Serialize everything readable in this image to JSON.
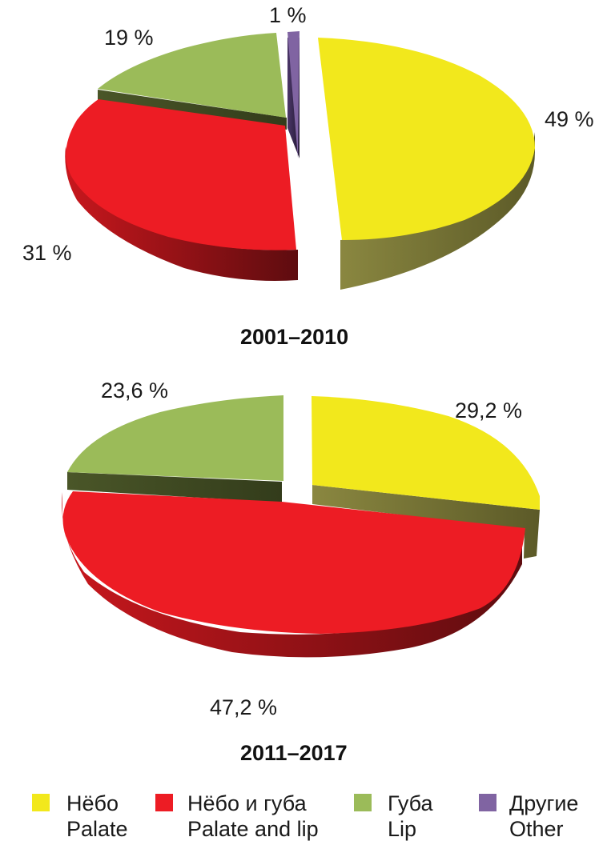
{
  "chart_data": [
    {
      "type": "pie",
      "title": "2001–2010",
      "series": [
        {
          "name": "Нёбо",
          "name_en": "Palate",
          "value": 49,
          "label": "49 %",
          "color": "#f2e81c",
          "side": "#6c6a2e"
        },
        {
          "name": "Нёбо и губа",
          "name_en": "Palate and lip",
          "value": 31,
          "label": "31 %",
          "color": "#ed1c24",
          "side": "#8b1216"
        },
        {
          "name": "Губа",
          "name_en": "Lip",
          "value": 19,
          "label": "19 %",
          "color": "#9bbb59",
          "side": "#3f4a22"
        },
        {
          "name": "Другие",
          "name_en": "Other",
          "value": 1,
          "label": "1 %",
          "color": "#8064a2",
          "side": "#3a2a50"
        }
      ]
    },
    {
      "type": "pie",
      "title": "2011–2017",
      "series": [
        {
          "name": "Нёбо",
          "name_en": "Palate",
          "value": 29.2,
          "label": "29,2 %",
          "color": "#f2e81c",
          "side": "#6c6a2e"
        },
        {
          "name": "Нёбо и губа",
          "name_en": "Palate and lip",
          "value": 47.2,
          "label": "47,2 %",
          "color": "#ed1c24",
          "side": "#8b1216"
        },
        {
          "name": "Губа",
          "name_en": "Lip",
          "value": 23.6,
          "label": "23,6 %",
          "color": "#9bbb59",
          "side": "#3f4a22"
        }
      ]
    }
  ],
  "legend": [
    {
      "ru": "Нёбо",
      "en": "Palate",
      "color": "#f2e81c"
    },
    {
      "ru": "Нёбо и губа",
      "en": "Palate and lip",
      "color": "#ed1c24"
    },
    {
      "ru": "Губа",
      "en": "Lip",
      "color": "#9bbb59"
    },
    {
      "ru": "Другие",
      "en": "Other",
      "color": "#8064a2"
    }
  ]
}
